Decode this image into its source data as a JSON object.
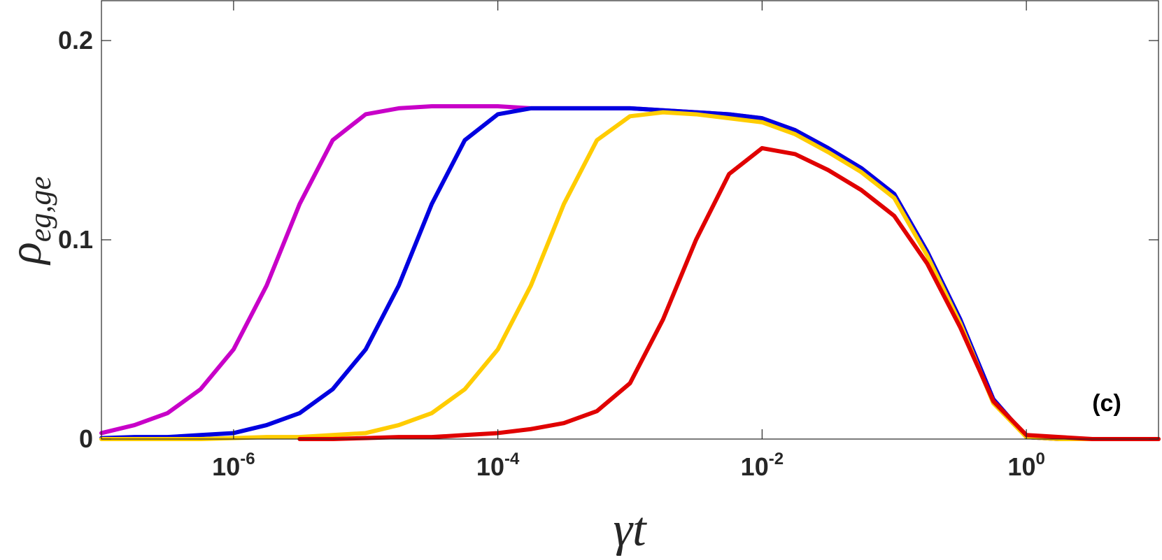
{
  "chart_data": {
    "type": "line",
    "x_label": "γt",
    "y_label": "ρeg,ge",
    "annotation": "(c)",
    "log_x": true,
    "xlim": [
      1e-07,
      10
    ],
    "ylim": [
      0,
      0.22
    ],
    "xticks": [
      {
        "value": 1e-06,
        "label": "10-6"
      },
      {
        "value": 0.0001,
        "label": "10-4"
      },
      {
        "value": 0.01,
        "label": "10-2"
      },
      {
        "value": 1,
        "label": "100"
      }
    ],
    "yticks": [
      0,
      0.1,
      0.2
    ],
    "x": [
      1e-07,
      1.778e-07,
      3.162e-07,
      5.623e-07,
      1e-06,
      1.778e-06,
      3.162e-06,
      5.623e-06,
      1e-05,
      1.778e-05,
      3.162e-05,
      5.623e-05,
      0.0001,
      0.0001778,
      0.0003162,
      0.0005623,
      0.001,
      0.001778,
      0.003162,
      0.005623,
      0.01,
      0.01778,
      0.03162,
      0.05623,
      0.1,
      0.1778,
      0.3162,
      0.5623,
      1,
      1.778,
      3.162,
      5.623,
      10
    ],
    "series": [
      {
        "color": "#c800c8",
        "values": [
          0.003,
          0.007,
          0.013,
          0.025,
          0.045,
          0.077,
          0.118,
          0.15,
          0.163,
          0.166,
          0.167,
          0.167,
          0.167,
          0.166,
          0.166,
          0.166,
          0.166,
          0.165,
          0.164,
          0.163,
          0.161,
          0.155,
          0.146,
          0.136,
          0.123,
          0.094,
          0.06,
          0.02,
          0.001,
          0,
          0,
          0,
          0
        ]
      },
      {
        "color": "#0000e0",
        "values": [
          0.0005,
          0.001,
          0.001,
          0.002,
          0.003,
          0.007,
          0.013,
          0.025,
          0.045,
          0.077,
          0.118,
          0.15,
          0.163,
          0.166,
          0.166,
          0.166,
          0.166,
          0.165,
          0.164,
          0.163,
          0.161,
          0.155,
          0.146,
          0.136,
          0.123,
          0.094,
          0.06,
          0.02,
          0.001,
          0,
          0,
          0,
          0
        ]
      },
      {
        "color": "#ffcc00",
        "values": [
          0,
          0,
          0,
          0,
          0.0005,
          0.001,
          0.001,
          0.002,
          0.003,
          0.007,
          0.013,
          0.025,
          0.045,
          0.077,
          0.118,
          0.15,
          0.162,
          0.164,
          0.163,
          0.161,
          0.159,
          0.153,
          0.144,
          0.134,
          0.121,
          0.092,
          0.058,
          0.018,
          0.001,
          0,
          0,
          0,
          0
        ]
      },
      {
        "color": "#e00000",
        "values": [
          null,
          null,
          null,
          null,
          null,
          null,
          0,
          0,
          0.0005,
          0.001,
          0.001,
          0.002,
          0.003,
          0.005,
          0.008,
          0.014,
          0.028,
          0.06,
          0.1,
          0.133,
          0.146,
          0.143,
          0.135,
          0.125,
          0.112,
          0.088,
          0.056,
          0.019,
          0.002,
          0.001,
          0,
          0,
          0
        ]
      }
    ]
  }
}
